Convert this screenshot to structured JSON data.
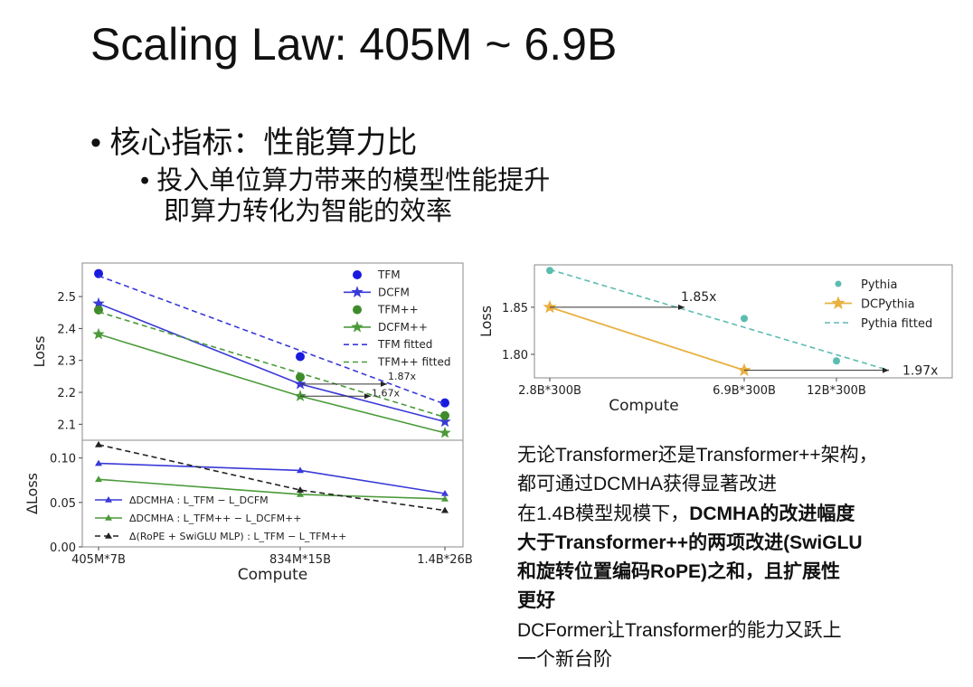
{
  "slide": {
    "title": "Scaling Law: 405M ~ 6.9B",
    "bullet1": "• 核心指标：性能算力比",
    "bullet2_line1": "• 投入单位算力带来的模型性能提升",
    "bullet2_line2": "即算力转化为智能的效率",
    "paragraph": [
      {
        "text": "无论Transformer还是Transformer++架构，",
        "bold": false
      },
      {
        "text": "都可通过DCMHA获得显著改进",
        "bold": false
      },
      {
        "text_a": "在1.4B模型规模下，",
        "text_b": "DCMHA的改进幅度",
        "mixed": true
      },
      {
        "text": "大于Transformer++的两项改进(SwiGLU",
        "bold": true
      },
      {
        "text": "和旋转位置编码RoPE)之和，且扩展性",
        "bold": true
      },
      {
        "text": "更好",
        "bold": true
      },
      {
        "text": "DCFormer让Transformer的能力又跃上",
        "bold": false
      },
      {
        "text": "一个新台阶",
        "bold": false
      }
    ]
  },
  "chart_data": [
    {
      "type": "line",
      "panel": "top",
      "categories": [
        "405M*7B",
        "834M*15B",
        "1.4B*26B"
      ],
      "xlabel": "Compute",
      "ylabel": "Loss",
      "yticks": [
        2.1,
        2.2,
        2.3,
        2.4,
        2.5
      ],
      "ylim": [
        2.05,
        2.605
      ],
      "legend_placement": "upper-right",
      "series": [
        {
          "name": "TFM",
          "marker": "circle",
          "line": "none",
          "color": "#1a1adf",
          "values": [
            2.572,
            2.312,
            2.167
          ]
        },
        {
          "name": "DCFM",
          "marker": "star",
          "line": "solid",
          "color": "#3a3ad8",
          "values": [
            2.478,
            2.226,
            2.108
          ]
        },
        {
          "name": "TFM++",
          "marker": "circle",
          "line": "none",
          "color": "#3f8a2a",
          "values": [
            2.458,
            2.248,
            2.127
          ]
        },
        {
          "name": "DCFM++",
          "marker": "star",
          "line": "solid",
          "color": "#4a9a3a",
          "values": [
            2.382,
            2.188,
            2.073
          ]
        },
        {
          "name": "TFM fitted",
          "marker": "none",
          "line": "dashed",
          "color": "#3a3ad8",
          "values": [
            2.565,
            2.33,
            2.163
          ]
        },
        {
          "name": "TFM++ fitted",
          "marker": "none",
          "line": "dashed",
          "color": "#4a9a3a",
          "values": [
            2.452,
            2.262,
            2.122
          ]
        }
      ],
      "annotations": [
        {
          "text": "1.87x",
          "y": 2.226
        },
        {
          "text": "1.67x",
          "y": 2.188
        }
      ]
    },
    {
      "type": "line",
      "panel": "bottom",
      "categories": [
        "405M*7B",
        "834M*15B",
        "1.4B*26B"
      ],
      "xlabel": "Compute",
      "ylabel": "ΔLoss",
      "yticks": [
        0.0,
        0.05,
        0.1
      ],
      "ylim": [
        0.0,
        0.12
      ],
      "legend_placement": "lower-left",
      "series": [
        {
          "name": "ΔDCMHA : L_TFM − L_DCFM",
          "line": "solid",
          "marker": "triangle",
          "color": "#3a3ad8",
          "values": [
            0.094,
            0.086,
            0.06
          ]
        },
        {
          "name": "ΔDCMHA : L_TFM++ − L_DCFM++",
          "line": "solid",
          "marker": "triangle",
          "color": "#4a9a3a",
          "values": [
            0.076,
            0.059,
            0.054
          ]
        },
        {
          "name": "Δ(RoPE + SwiGLU MLP) : L_TFM − L_TFM++",
          "line": "dashed",
          "marker": "triangle",
          "color": "#222222",
          "values": [
            0.115,
            0.064,
            0.041
          ]
        }
      ]
    },
    {
      "type": "line",
      "panel": "right",
      "categories": [
        "2.8B*300B",
        "6.9B*300B",
        "12B*300B"
      ],
      "xlabel": "Compute",
      "ylabel": "Loss",
      "yticks": [
        1.8,
        1.85
      ],
      "ylim": [
        1.775,
        1.895
      ],
      "legend_placement": "upper-right",
      "series": [
        {
          "name": "Pythia",
          "marker": "circle",
          "line": "none",
          "color": "#5bbcb0",
          "values": [
            1.889,
            1.838,
            1.793
          ]
        },
        {
          "name": "DCPythia",
          "marker": "star",
          "line": "solid",
          "color": "#e8b040",
          "values": [
            1.85,
            1.783,
            null
          ]
        },
        {
          "name": "Pythia fitted",
          "marker": "none",
          "line": "dashed",
          "color": "#5bbcb0",
          "values": [
            1.89,
            1.83,
            1.8
          ]
        }
      ],
      "annotations": [
        {
          "text": "1.85x",
          "y": 1.85
        },
        {
          "text": "1.97x",
          "y": 1.783
        }
      ]
    }
  ]
}
